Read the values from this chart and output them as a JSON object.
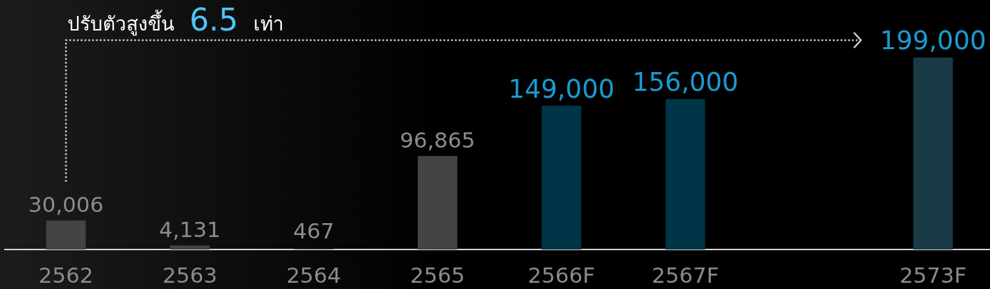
{
  "chart_data": {
    "type": "bar",
    "annotations": [
      "ปรับตัวสูงขึ้น",
      "6.5",
      "เท่า"
    ],
    "categories": [
      "2562",
      "2563",
      "2564",
      "2565",
      "2566F",
      "2567F",
      null,
      "2573F"
    ],
    "values": [
      30006,
      4131,
      467,
      96865,
      149000,
      156000,
      null,
      199000
    ],
    "colors": [
      "#444444",
      "#444444",
      "#444444",
      "#444444",
      "#003447",
      "#003447",
      null,
      "#1a3b46"
    ],
    "value_labels": [
      "30,006",
      "4,131",
      "467",
      "96,865",
      "149,000",
      "156,000",
      null,
      "199,000"
    ]
  }
}
